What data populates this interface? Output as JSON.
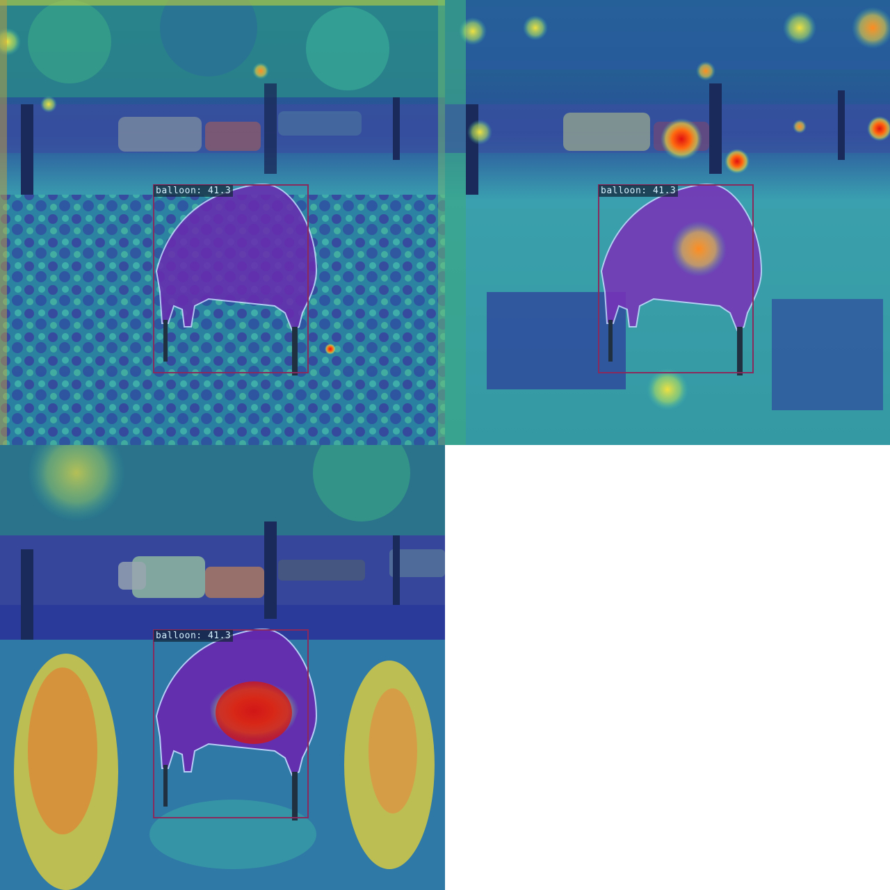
{
  "panels": [
    {
      "detection": {
        "label": "balloon: 41.3"
      }
    },
    {
      "detection": {
        "label": "balloon: 41.3"
      }
    },
    {
      "detection": {
        "label": "balloon: 41.3"
      }
    }
  ]
}
